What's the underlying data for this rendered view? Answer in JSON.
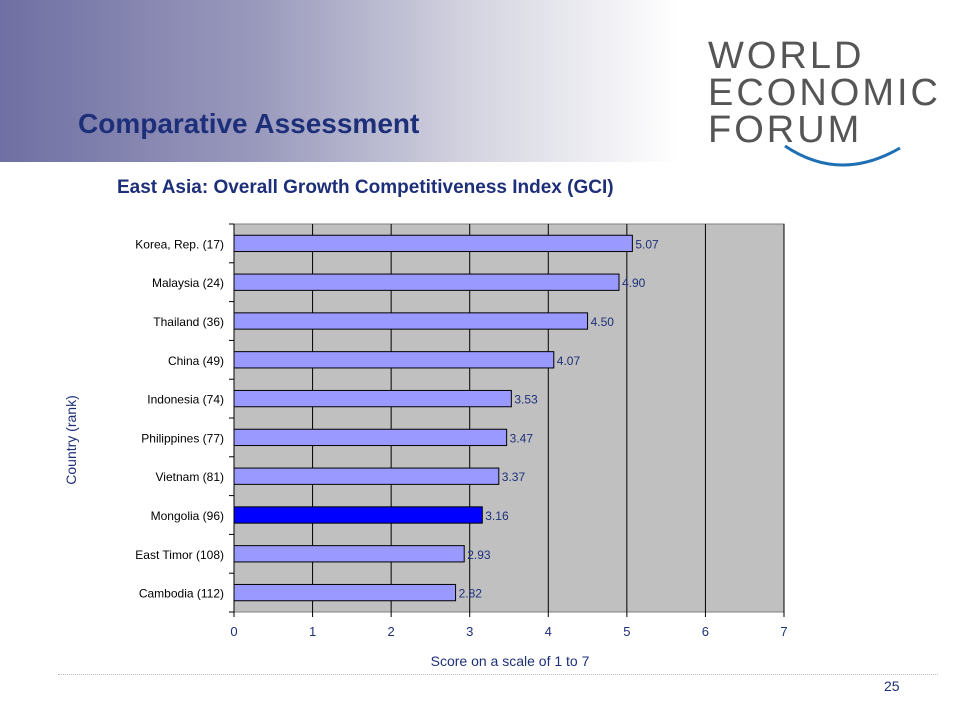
{
  "slide": {
    "title": "Comparative Assessment",
    "page_number": "25"
  },
  "logo": {
    "lines": [
      "WORLD",
      "ECONOMIC",
      "FORUM"
    ],
    "color": "#555555",
    "arc_color": "#1f6fb5"
  },
  "colors": {
    "title": "#1e2f7a",
    "bar": "#9999ff",
    "highlight_bar": "#0000ff",
    "plot_bg": "#c0c0c0",
    "axis_text": "#1e2f7a"
  },
  "chart_data": {
    "type": "bar",
    "orientation": "horizontal",
    "title": "East Asia: Overall Growth Competitiveness Index (GCI)",
    "xlabel": "Score on a scale of 1 to 7",
    "ylabel": "Country (rank)",
    "xlim": [
      0,
      7
    ],
    "xticks": [
      "0",
      "1",
      "2",
      "3",
      "4",
      "5",
      "6",
      "7"
    ],
    "grid": "vertical",
    "categories": [
      "Korea, Rep. (17)",
      "Malaysia (24)",
      "Thailand (36)",
      "China (49)",
      "Indonesia (74)",
      "Philippines (77)",
      "Vietnam (81)",
      "Mongolia (96)",
      "East Timor (108)",
      "Cambodia (112)"
    ],
    "values": [
      5.07,
      4.9,
      4.5,
      4.07,
      3.53,
      3.47,
      3.37,
      3.16,
      2.93,
      2.82
    ],
    "value_labels": [
      "5.07",
      "4.90",
      "4.50",
      "4.07",
      "3.53",
      "3.47",
      "3.37",
      "3.16",
      "2.93",
      "2.82"
    ],
    "highlight": "Mongolia (96)"
  }
}
